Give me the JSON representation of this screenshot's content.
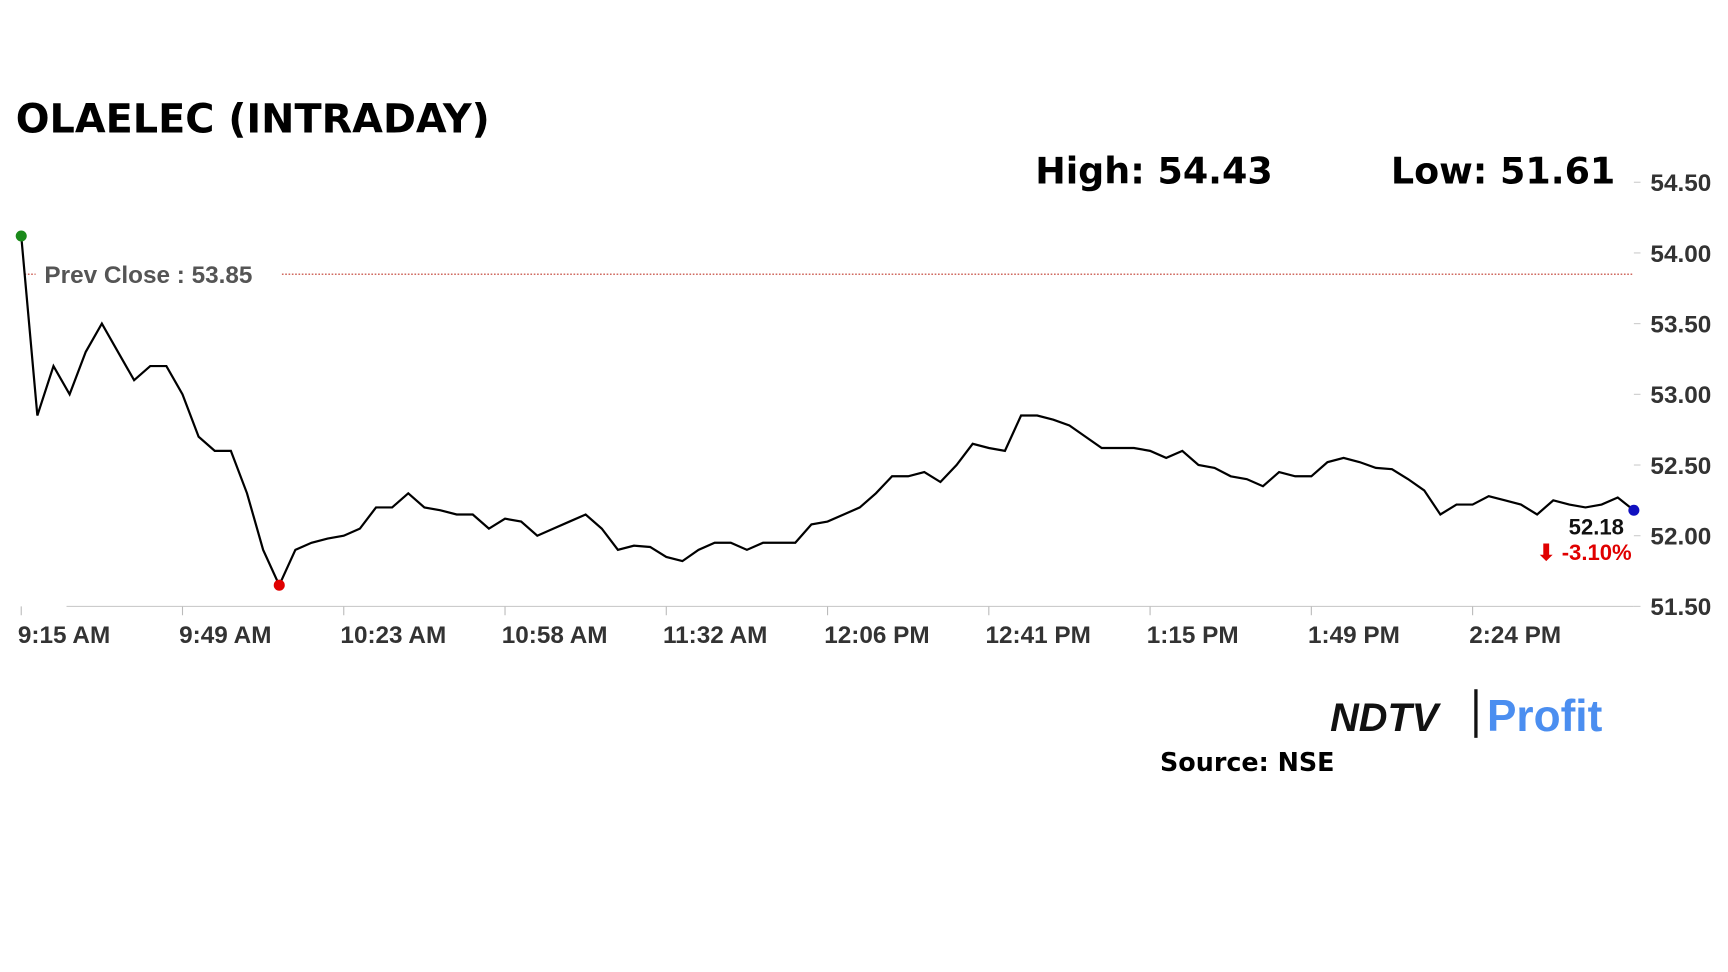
{
  "chart_data": {
    "type": "line",
    "title": "OLAELEC (INTRADAY)",
    "high_text": "High: 54.43",
    "low_text": "Low: 51.61",
    "prev_close": {
      "label": "Prev Close : 53.85",
      "value": 53.85,
      "color": "#c0392b"
    },
    "last_label": "52.18",
    "change_label": "⬇ -3.10%",
    "change_color": "#e00000",
    "source": "Source: NSE",
    "logo": {
      "left": "NDTV",
      "right": "Profit"
    },
    "categories": [
      "9:15 AM",
      null,
      null,
      null,
      null,
      null,
      null,
      null,
      null,
      null,
      "9:49 AM",
      null,
      null,
      null,
      null,
      null,
      null,
      null,
      null,
      null,
      "10:23 AM",
      null,
      null,
      null,
      null,
      null,
      null,
      null,
      null,
      null,
      "10:58 AM",
      null,
      null,
      null,
      null,
      null,
      null,
      null,
      null,
      null,
      "11:32 AM",
      null,
      null,
      null,
      null,
      null,
      null,
      null,
      null,
      null,
      "12:06 PM",
      null,
      null,
      null,
      null,
      null,
      null,
      null,
      null,
      null,
      "12:41 PM",
      null,
      null,
      null,
      null,
      null,
      null,
      null,
      null,
      null,
      "1:15 PM",
      null,
      null,
      null,
      null,
      null,
      null,
      null,
      null,
      null,
      "1:49 PM",
      null,
      null,
      null,
      null,
      null,
      null,
      null,
      null,
      null,
      "2:24 PM",
      null,
      null,
      null,
      null,
      null,
      null,
      null,
      null,
      null,
      null
    ],
    "series": [
      {
        "color": "#000000",
        "values": [
          54.12,
          52.85,
          53.2,
          53.0,
          53.3,
          53.5,
          53.3,
          53.1,
          53.2,
          53.2,
          53.0,
          52.7,
          52.6,
          52.6,
          52.3,
          51.9,
          51.65,
          51.9,
          51.95,
          51.98,
          52.0,
          52.05,
          52.2,
          52.2,
          52.3,
          52.2,
          52.18,
          52.15,
          52.15,
          52.05,
          52.12,
          52.1,
          52.0,
          52.05,
          52.1,
          52.15,
          52.05,
          51.9,
          51.93,
          51.92,
          51.85,
          51.82,
          51.9,
          51.95,
          51.95,
          51.9,
          51.95,
          51.95,
          51.95,
          52.08,
          52.1,
          52.15,
          52.2,
          52.3,
          52.42,
          52.42,
          52.45,
          52.38,
          52.5,
          52.65,
          52.62,
          52.6,
          52.85,
          52.85,
          52.82,
          52.78,
          52.7,
          52.62,
          52.62,
          52.62,
          52.6,
          52.55,
          52.6,
          52.5,
          52.48,
          52.42,
          52.4,
          52.35,
          52.45,
          52.42,
          52.42,
          52.52,
          52.55,
          52.52,
          52.48,
          52.47,
          52.4,
          52.32,
          52.15,
          52.22,
          52.22,
          52.28,
          52.25,
          52.22,
          52.15,
          52.25,
          52.22,
          52.2,
          52.22,
          52.27,
          52.18
        ]
      }
    ],
    "markers": {
      "start_color": "#1a8a1a",
      "low_color": "#e00000",
      "end_color": "#1010c0"
    },
    "ylim": [
      51.5,
      54.5
    ],
    "yticks": [
      {
        "value": 51.5,
        "label": "51.50"
      },
      {
        "value": 52,
        "label": "52.00"
      },
      {
        "value": 52.5,
        "label": "52.50"
      },
      {
        "value": 53,
        "label": "53.00"
      },
      {
        "value": 53.5,
        "label": "53.50"
      },
      {
        "value": 54,
        "label": "54.00"
      },
      {
        "value": 54.5,
        "label": "54.50"
      }
    ]
  }
}
